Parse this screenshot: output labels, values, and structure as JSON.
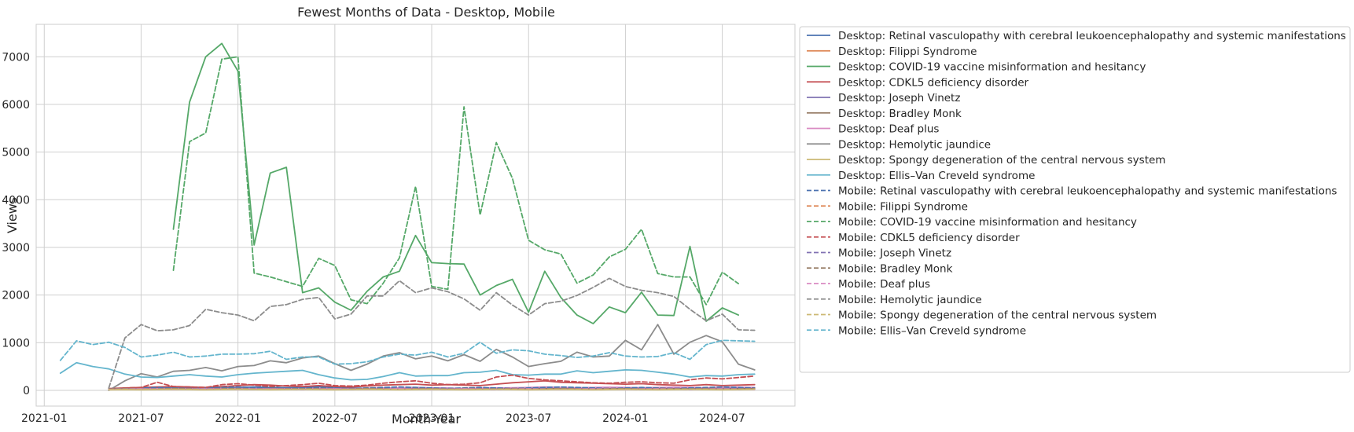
{
  "chart_data": {
    "type": "line",
    "title": "Fewest Months of Data - Desktop, Mobile",
    "xlabel": "Month-Year",
    "ylabel": "Views",
    "x_ticks": [
      "2021-01",
      "2021-07",
      "2022-01",
      "2022-07",
      "2023-01",
      "2023-07",
      "2024-01",
      "2024-07"
    ],
    "y_ticks": [
      "0",
      "1000",
      "2000",
      "3000",
      "4000",
      "5000",
      "6000",
      "7000"
    ],
    "xlim": [
      "2020-12",
      "2024-11"
    ],
    "ylim": [
      -330,
      7680
    ],
    "grid": true,
    "legend": "outside-right",
    "series": [
      {
        "name": "Desktop: Retinal vasculopathy with cerebral leukoencephalopathy and systemic manifestations",
        "color": "#4c72b0",
        "dash": false,
        "start": "2021-05",
        "values": [
          30,
          40,
          40,
          45,
          50,
          55,
          50,
          45,
          60,
          70,
          60,
          55,
          60,
          80,
          60,
          50,
          40,
          45,
          50,
          60,
          50,
          45,
          40,
          40,
          45,
          50,
          45,
          40,
          40,
          45,
          50,
          40,
          40,
          45,
          50,
          60,
          50,
          40,
          40,
          45,
          50
        ]
      },
      {
        "name": "Desktop: Filippi Syndrome",
        "color": "#dd8452",
        "dash": false,
        "start": "2021-05",
        "values": [
          20,
          25,
          30,
          25,
          20,
          25,
          30,
          40,
          30,
          25,
          20,
          25,
          30,
          25,
          20,
          25,
          30,
          25,
          20,
          25,
          30,
          25,
          20,
          25,
          30,
          25,
          20,
          25,
          30,
          25,
          20,
          25,
          30,
          25,
          20,
          25,
          30,
          25,
          20,
          25,
          30
        ]
      },
      {
        "name": "Desktop: COVID-19 vaccine misinformation and hesitancy",
        "color": "#55a868",
        "dash": false,
        "start": "2021-09",
        "values": [
          3380,
          6050,
          7000,
          7280,
          6700,
          3050,
          4560,
          4680,
          2050,
          2150,
          1850,
          1680,
          2080,
          2380,
          2500,
          3250,
          2680,
          2660,
          2650,
          2000,
          2200,
          2330,
          1640,
          2500,
          1950,
          1580,
          1400,
          1750,
          1630,
          2060,
          1580,
          1570,
          3020,
          1450,
          1730,
          1580
        ]
      },
      {
        "name": "Desktop: CDKL5 deficiency disorder",
        "color": "#c44e52",
        "dash": false,
        "start": "2021-05",
        "values": [
          40,
          50,
          60,
          70,
          80,
          70,
          60,
          80,
          100,
          120,
          110,
          90,
          80,
          100,
          80,
          70,
          90,
          110,
          120,
          130,
          110,
          120,
          110,
          100,
          130,
          160,
          180,
          200,
          170,
          160,
          150,
          140,
          130,
          140,
          120,
          110,
          100,
          120,
          100,
          110,
          120
        ]
      },
      {
        "name": "Desktop: Joseph Vinetz",
        "color": "#8172b3",
        "dash": false,
        "start": "2021-05",
        "values": [
          20,
          25,
          20,
          25,
          30,
          25,
          20,
          25,
          30,
          25,
          20,
          25,
          30,
          25,
          20,
          25,
          30,
          25,
          20,
          25,
          30,
          25,
          20,
          25,
          30,
          25,
          20,
          25,
          30,
          25,
          20,
          25,
          30,
          25,
          20,
          25,
          30,
          25,
          20,
          25,
          30
        ]
      },
      {
        "name": "Desktop: Bradley Monk",
        "color": "#937860",
        "dash": false,
        "start": "2021-05",
        "values": [
          30,
          35,
          30,
          35,
          40,
          35,
          30,
          35,
          40,
          35,
          30,
          35,
          40,
          35,
          30,
          35,
          40,
          35,
          30,
          35,
          40,
          35,
          30,
          35,
          40,
          35,
          30,
          35,
          40,
          35,
          30,
          35,
          40,
          35,
          30,
          35,
          40,
          35,
          30,
          35,
          40
        ]
      },
      {
        "name": "Desktop: Deaf plus",
        "color": "#da8bc3",
        "dash": false,
        "start": "2021-05",
        "values": [
          20,
          25,
          30,
          35,
          40,
          35,
          30,
          35,
          40,
          35,
          30,
          35,
          40,
          45,
          40,
          35,
          40,
          45,
          50,
          55,
          50,
          45,
          40,
          45,
          50,
          55,
          60,
          70,
          60,
          55,
          60,
          65,
          60,
          55,
          60,
          65,
          60,
          55,
          60,
          65,
          60
        ]
      },
      {
        "name": "Desktop: Hemolytic jaundice",
        "color": "#8c8c8c",
        "dash": false,
        "start": "2021-05",
        "values": [
          0,
          200,
          350,
          280,
          400,
          420,
          480,
          410,
          500,
          520,
          620,
          580,
          680,
          720,
          560,
          420,
          550,
          720,
          790,
          660,
          720,
          620,
          750,
          610,
          860,
          700,
          500,
          560,
          610,
          800,
          700,
          720,
          1050,
          850,
          1380,
          760,
          1010,
          1150,
          1020,
          550,
          430
        ]
      },
      {
        "name": "Desktop: Spongy degeneration of the central nervous system",
        "color": "#ccb974",
        "dash": false,
        "start": "2021-05",
        "values": [
          10,
          15,
          10,
          15,
          20,
          15,
          10,
          15,
          20,
          15,
          10,
          15,
          20,
          15,
          10,
          15,
          20,
          15,
          10,
          15,
          20,
          15,
          10,
          15,
          20,
          15,
          10,
          15,
          20,
          15,
          10,
          15,
          20,
          15,
          10,
          15,
          20,
          15,
          10,
          15,
          20
        ]
      },
      {
        "name": "Desktop: Ellis–Van Creveld syndrome",
        "color": "#64b5cd",
        "dash": false,
        "start": "2021-02",
        "values": [
          360,
          580,
          500,
          450,
          340,
          280,
          270,
          300,
          330,
          300,
          280,
          330,
          360,
          380,
          400,
          420,
          330,
          260,
          220,
          230,
          290,
          370,
          300,
          310,
          310,
          370,
          380,
          420,
          330,
          320,
          340,
          340,
          410,
          370,
          400,
          430,
          420,
          380,
          340,
          280,
          310,
          300,
          330,
          340
        ]
      },
      {
        "name": "Mobile: Retinal vasculopathy with cerebral leukoencephalopathy and systemic manifestations",
        "color": "#4c72b0",
        "dash": true,
        "start": "2021-05",
        "values": [
          30,
          40,
          50,
          60,
          50,
          40,
          50,
          60,
          70,
          60,
          50,
          40,
          50,
          60,
          50,
          40,
          50,
          60,
          70,
          60,
          50,
          40,
          50,
          60,
          50,
          40,
          50,
          60,
          70,
          60,
          50,
          40,
          50,
          60,
          50,
          40,
          50,
          60,
          70,
          60,
          50
        ]
      },
      {
        "name": "Mobile: Filippi Syndrome",
        "color": "#dd8452",
        "dash": true,
        "start": "2021-05",
        "values": [
          20,
          30,
          25,
          20,
          30,
          25,
          20,
          30,
          25,
          20,
          30,
          25,
          20,
          30,
          25,
          20,
          30,
          25,
          20,
          30,
          25,
          20,
          30,
          25,
          20,
          30,
          25,
          20,
          30,
          25,
          20,
          30,
          25,
          20,
          30,
          25,
          20,
          30,
          25,
          20,
          30
        ]
      },
      {
        "name": "Mobile: COVID-19 vaccine misinformation and hesitancy",
        "color": "#55a868",
        "dash": true,
        "start": "2021-09",
        "values": [
          2520,
          5220,
          5400,
          6950,
          7000,
          2460,
          2380,
          2280,
          2180,
          2770,
          2620,
          1900,
          1820,
          2250,
          2780,
          4280,
          2180,
          2120,
          5950,
          3680,
          5200,
          4450,
          3150,
          2950,
          2860,
          2250,
          2420,
          2800,
          2960,
          3380,
          2450,
          2380,
          2380,
          1800,
          2480,
          2240
        ]
      },
      {
        "name": "Mobile: CDKL5 deficiency disorder",
        "color": "#c44e52",
        "dash": true,
        "start": "2021-05",
        "values": [
          30,
          50,
          60,
          170,
          80,
          70,
          60,
          120,
          140,
          110,
          80,
          100,
          120,
          150,
          100,
          90,
          110,
          150,
          180,
          200,
          150,
          120,
          130,
          160,
          280,
          320,
          250,
          220,
          200,
          180,
          160,
          150,
          170,
          180,
          160,
          150,
          220,
          260,
          240,
          270,
          300
        ]
      },
      {
        "name": "Mobile: Joseph Vinetz",
        "color": "#8172b3",
        "dash": true,
        "start": "2021-05",
        "values": [
          20,
          30,
          25,
          20,
          30,
          25,
          20,
          30,
          25,
          20,
          30,
          25,
          20,
          30,
          25,
          20,
          30,
          25,
          20,
          30,
          25,
          20,
          30,
          25,
          20,
          30,
          25,
          20,
          30,
          25,
          20,
          30,
          25,
          20,
          30,
          25,
          20,
          30,
          25,
          20,
          30
        ]
      },
      {
        "name": "Mobile: Bradley Monk",
        "color": "#937860",
        "dash": true,
        "start": "2021-05",
        "values": [
          30,
          40,
          35,
          30,
          40,
          35,
          30,
          40,
          35,
          30,
          40,
          35,
          30,
          40,
          35,
          30,
          40,
          35,
          30,
          40,
          35,
          30,
          40,
          35,
          30,
          40,
          35,
          30,
          40,
          35,
          30,
          40,
          35,
          30,
          40,
          35,
          30,
          40,
          35,
          30,
          40
        ]
      },
      {
        "name": "Mobile: Deaf plus",
        "color": "#da8bc3",
        "dash": true,
        "start": "2021-05",
        "values": [
          20,
          25,
          30,
          25,
          20,
          25,
          30,
          25,
          20,
          25,
          30,
          25,
          20,
          25,
          30,
          25,
          20,
          25,
          30,
          25,
          20,
          25,
          30,
          25,
          20,
          25,
          30,
          25,
          20,
          25,
          30,
          25,
          20,
          25,
          30,
          25,
          20,
          25,
          30,
          25,
          20
        ]
      },
      {
        "name": "Mobile: Hemolytic jaundice",
        "color": "#8c8c8c",
        "dash": true,
        "start": "2021-05",
        "values": [
          50,
          1100,
          1380,
          1250,
          1270,
          1360,
          1700,
          1630,
          1580,
          1460,
          1760,
          1800,
          1910,
          1950,
          1500,
          1600,
          1980,
          1980,
          2300,
          2050,
          2150,
          2070,
          1920,
          1680,
          2050,
          1790,
          1580,
          1820,
          1870,
          1990,
          2160,
          2350,
          2180,
          2100,
          2050,
          1970,
          1700,
          1460,
          1600,
          1270,
          1260
        ]
      },
      {
        "name": "Mobile: Spongy degeneration of the central nervous system",
        "color": "#ccb974",
        "dash": true,
        "start": "2021-05",
        "values": [
          15,
          20,
          15,
          20,
          25,
          20,
          15,
          20,
          25,
          20,
          15,
          20,
          25,
          20,
          15,
          20,
          25,
          20,
          15,
          20,
          25,
          20,
          15,
          20,
          25,
          20,
          15,
          20,
          25,
          20,
          15,
          20,
          25,
          20,
          15,
          20,
          25,
          20,
          15,
          20,
          25
        ]
      },
      {
        "name": "Mobile: Ellis–Van Creveld syndrome",
        "color": "#64b5cd",
        "dash": true,
        "start": "2021-02",
        "values": [
          630,
          1040,
          960,
          1010,
          900,
          700,
          740,
          800,
          700,
          720,
          760,
          760,
          770,
          820,
          650,
          700,
          700,
          550,
          560,
          600,
          700,
          760,
          740,
          800,
          700,
          780,
          1010,
          780,
          850,
          830,
          760,
          730,
          690,
          720,
          790,
          720,
          700,
          710,
          790,
          650,
          960,
          1050,
          1040,
          1030
        ]
      }
    ]
  }
}
